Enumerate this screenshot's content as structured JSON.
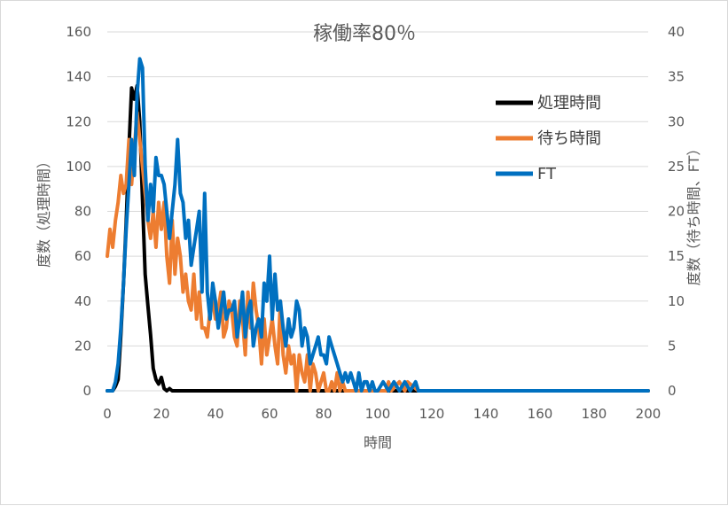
{
  "chart_data": {
    "type": "line",
    "title": "稼働率80％",
    "xlabel": "時間",
    "ylabel_left": "度数（処理時間）",
    "ylabel_right": "度数（待ち時間、FT）",
    "xlim": [
      0,
      200
    ],
    "ylim_left": [
      0,
      160
    ],
    "ylim_right": [
      0,
      40
    ],
    "x_ticks": [
      "0",
      "20",
      "40",
      "60",
      "80",
      "100",
      "120",
      "140",
      "160",
      "180",
      "200"
    ],
    "y_ticks_left": [
      "0",
      "20",
      "40",
      "60",
      "80",
      "100",
      "120",
      "140",
      "160"
    ],
    "y_ticks_right": [
      "0",
      "5",
      "10",
      "15",
      "20",
      "25",
      "30",
      "35",
      "40"
    ],
    "grid": true,
    "legend_position": "top-right",
    "series": [
      {
        "name": "処理時間",
        "color": "#000000",
        "axis": "left",
        "x": [
          0,
          1,
          2,
          3,
          4,
          5,
          6,
          7,
          8,
          9,
          10,
          11,
          12,
          13,
          14,
          15,
          16,
          17,
          18,
          19,
          20,
          21,
          22,
          23,
          24,
          25,
          30,
          40,
          60,
          80,
          100,
          120,
          140,
          160,
          180,
          200
        ],
        "y": [
          0,
          0,
          0,
          2,
          5,
          25,
          48,
          75,
          108,
          135,
          130,
          136,
          120,
          85,
          52,
          38,
          25,
          10,
          5,
          3,
          6,
          1,
          0,
          1,
          0,
          0,
          0,
          0,
          0,
          0,
          0,
          0,
          0,
          0,
          0,
          0
        ]
      },
      {
        "name": "待ち時間",
        "color": "#ed7d31",
        "axis": "right",
        "x": [
          0,
          1,
          2,
          3,
          4,
          5,
          6,
          7,
          8,
          9,
          10,
          11,
          12,
          13,
          14,
          15,
          16,
          17,
          18,
          19,
          20,
          21,
          22,
          23,
          24,
          25,
          26,
          27,
          28,
          29,
          30,
          31,
          32,
          33,
          34,
          35,
          36,
          37,
          38,
          39,
          40,
          41,
          42,
          43,
          44,
          45,
          46,
          47,
          48,
          49,
          50,
          51,
          52,
          53,
          54,
          55,
          56,
          57,
          58,
          59,
          60,
          61,
          62,
          63,
          64,
          65,
          66,
          67,
          68,
          69,
          70,
          71,
          72,
          73,
          74,
          75,
          76,
          77,
          78,
          79,
          80,
          81,
          82,
          83,
          84,
          85,
          86,
          87,
          88,
          89,
          90,
          95,
          100,
          103,
          104,
          105,
          108,
          110,
          111,
          115,
          120,
          140,
          160,
          180,
          200
        ],
        "y": [
          15,
          18,
          16,
          19,
          21,
          24,
          22,
          23,
          28,
          23,
          27,
          31,
          28,
          25,
          22,
          19,
          17,
          20,
          16,
          21,
          18,
          21,
          15,
          12,
          19,
          13,
          17,
          15,
          11,
          13,
          10,
          9,
          13,
          8,
          11,
          7,
          7,
          6,
          9,
          10,
          8,
          9,
          11,
          6,
          7,
          10,
          9,
          6,
          5,
          10,
          8,
          4,
          11,
          7,
          12,
          9,
          7,
          3,
          8,
          4,
          6,
          8,
          5,
          3,
          10,
          4,
          2,
          5,
          3,
          4,
          0,
          4,
          2,
          1,
          4,
          0,
          3,
          2,
          0,
          1,
          2,
          0,
          0,
          1,
          0,
          2,
          0,
          1,
          0,
          0,
          0,
          0,
          0,
          0,
          1,
          0,
          1,
          0,
          1,
          0,
          0,
          0,
          0,
          0,
          0
        ]
      },
      {
        "name": "FT",
        "color": "#0070c0",
        "axis": "right",
        "x": [
          0,
          1,
          2,
          3,
          4,
          5,
          6,
          7,
          8,
          9,
          10,
          11,
          12,
          13,
          14,
          15,
          16,
          17,
          18,
          19,
          20,
          21,
          22,
          23,
          24,
          25,
          26,
          27,
          28,
          29,
          30,
          31,
          32,
          33,
          34,
          35,
          36,
          37,
          38,
          39,
          40,
          41,
          42,
          43,
          44,
          45,
          46,
          47,
          48,
          49,
          50,
          51,
          52,
          53,
          54,
          55,
          56,
          57,
          58,
          59,
          60,
          61,
          62,
          63,
          64,
          65,
          66,
          67,
          68,
          69,
          70,
          71,
          72,
          73,
          74,
          75,
          76,
          77,
          78,
          79,
          80,
          81,
          82,
          83,
          84,
          85,
          86,
          87,
          88,
          89,
          90,
          91,
          92,
          93,
          94,
          95,
          96,
          97,
          98,
          99,
          100,
          102,
          104,
          106,
          108,
          110,
          112,
          114,
          115,
          116,
          120,
          140,
          160,
          180,
          200
        ],
        "y": [
          0,
          0,
          0,
          1,
          3,
          7,
          12,
          18,
          23,
          28,
          24,
          33,
          37,
          36,
          25,
          19,
          23,
          20,
          26,
          24,
          24,
          23,
          20,
          17,
          20,
          23,
          28,
          22,
          21,
          17,
          19,
          14,
          16,
          18,
          20,
          11,
          22,
          11,
          8,
          12,
          10,
          7,
          9,
          11,
          8,
          9,
          9,
          10,
          6,
          8,
          11,
          6,
          9,
          10,
          5,
          7,
          8,
          6,
          12,
          10,
          15,
          8,
          13,
          9,
          10,
          7,
          5,
          8,
          6,
          7,
          10,
          9,
          5,
          7,
          6,
          3,
          4,
          5,
          6,
          4,
          4,
          3,
          6,
          5,
          4,
          3,
          2,
          1,
          2,
          1,
          2,
          1,
          0,
          2,
          0,
          1,
          1,
          0,
          1,
          0,
          0,
          1,
          0,
          1,
          0,
          1,
          0,
          1,
          0,
          0,
          0,
          0,
          0,
          0,
          0
        ]
      }
    ]
  }
}
